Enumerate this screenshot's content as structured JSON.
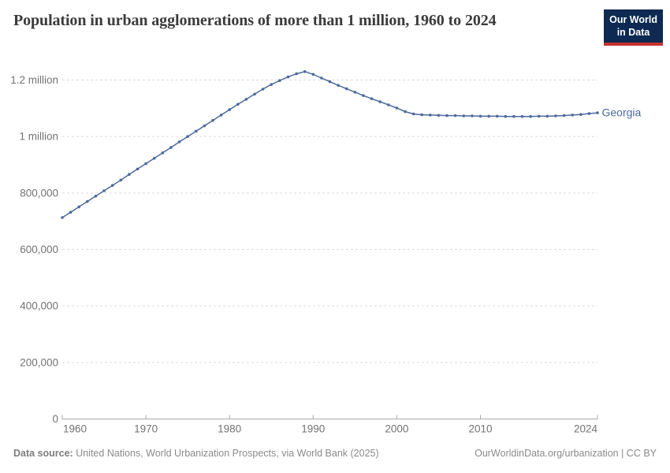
{
  "header": {
    "title": "Population in urban agglomerations of more than 1 million, 1960 to 2024",
    "logo": {
      "line1": "Our World",
      "line2": "in Data"
    }
  },
  "colors": {
    "line": "#4C6A9C",
    "series_label": "#4C6A9C",
    "grid": "#dcdcdc",
    "axis": "#a8a8a8",
    "tick_label": "#737373",
    "title_text": "#3b3b3b",
    "footer_text": "#8a8a8a",
    "logo_navy": "#0E2A52",
    "logo_red": "#C8332F"
  },
  "chart_data": {
    "type": "line",
    "title": "Population in urban agglomerations of more than 1 million, 1960 to 2024",
    "xlabel": "",
    "ylabel": "",
    "xlim": [
      1960,
      2024
    ],
    "ylim": [
      0,
      1200000
    ],
    "grid": "horizontal-dashed",
    "legend_position": "line-end-label",
    "x_ticks": [
      1960,
      1970,
      1980,
      1990,
      2000,
      2010,
      2024
    ],
    "y_ticks": [
      {
        "value": 0,
        "label": "0"
      },
      {
        "value": 200000,
        "label": "200,000"
      },
      {
        "value": 400000,
        "label": "400,000"
      },
      {
        "value": 600000,
        "label": "600,000"
      },
      {
        "value": 800000,
        "label": "800,000"
      },
      {
        "value": 1000000,
        "label": "1 million"
      },
      {
        "value": 1200000,
        "label": "1.2 million"
      }
    ],
    "series": [
      {
        "name": "Georgia",
        "color": "#4C6A9C",
        "x": [
          1960,
          1961,
          1962,
          1963,
          1964,
          1965,
          1966,
          1967,
          1968,
          1969,
          1970,
          1971,
          1972,
          1973,
          1974,
          1975,
          1976,
          1977,
          1978,
          1979,
          1980,
          1981,
          1982,
          1983,
          1984,
          1985,
          1986,
          1987,
          1988,
          1989,
          1990,
          1991,
          1992,
          1993,
          1994,
          1995,
          1996,
          1997,
          1998,
          1999,
          2000,
          2001,
          2002,
          2003,
          2004,
          2005,
          2006,
          2007,
          2008,
          2009,
          2010,
          2011,
          2012,
          2013,
          2014,
          2015,
          2016,
          2017,
          2018,
          2019,
          2020,
          2021,
          2022,
          2023,
          2024
        ],
        "values": [
          713000,
          732000,
          751000,
          770000,
          789000,
          808000,
          827000,
          846000,
          866000,
          885000,
          904000,
          923000,
          942000,
          961000,
          981000,
          1000000,
          1019000,
          1038000,
          1057000,
          1076000,
          1095000,
          1114000,
          1132000,
          1150000,
          1168000,
          1184000,
          1198000,
          1211000,
          1222000,
          1230000,
          1220000,
          1207000,
          1194000,
          1181000,
          1169000,
          1157000,
          1145000,
          1134000,
          1123000,
          1112000,
          1101000,
          1088000,
          1080000,
          1077000,
          1076000,
          1075000,
          1074000,
          1074000,
          1073000,
          1073000,
          1072000,
          1072000,
          1072000,
          1071000,
          1071000,
          1071000,
          1071000,
          1072000,
          1072000,
          1073000,
          1074000,
          1076000,
          1078000,
          1081000,
          1084000
        ]
      }
    ]
  },
  "footer": {
    "source_label": "Data source:",
    "source_text": " United Nations, World Urbanization Prospects, via World Bank (2025)",
    "link_text": "OurWorldinData.org/urbanization | CC BY"
  }
}
